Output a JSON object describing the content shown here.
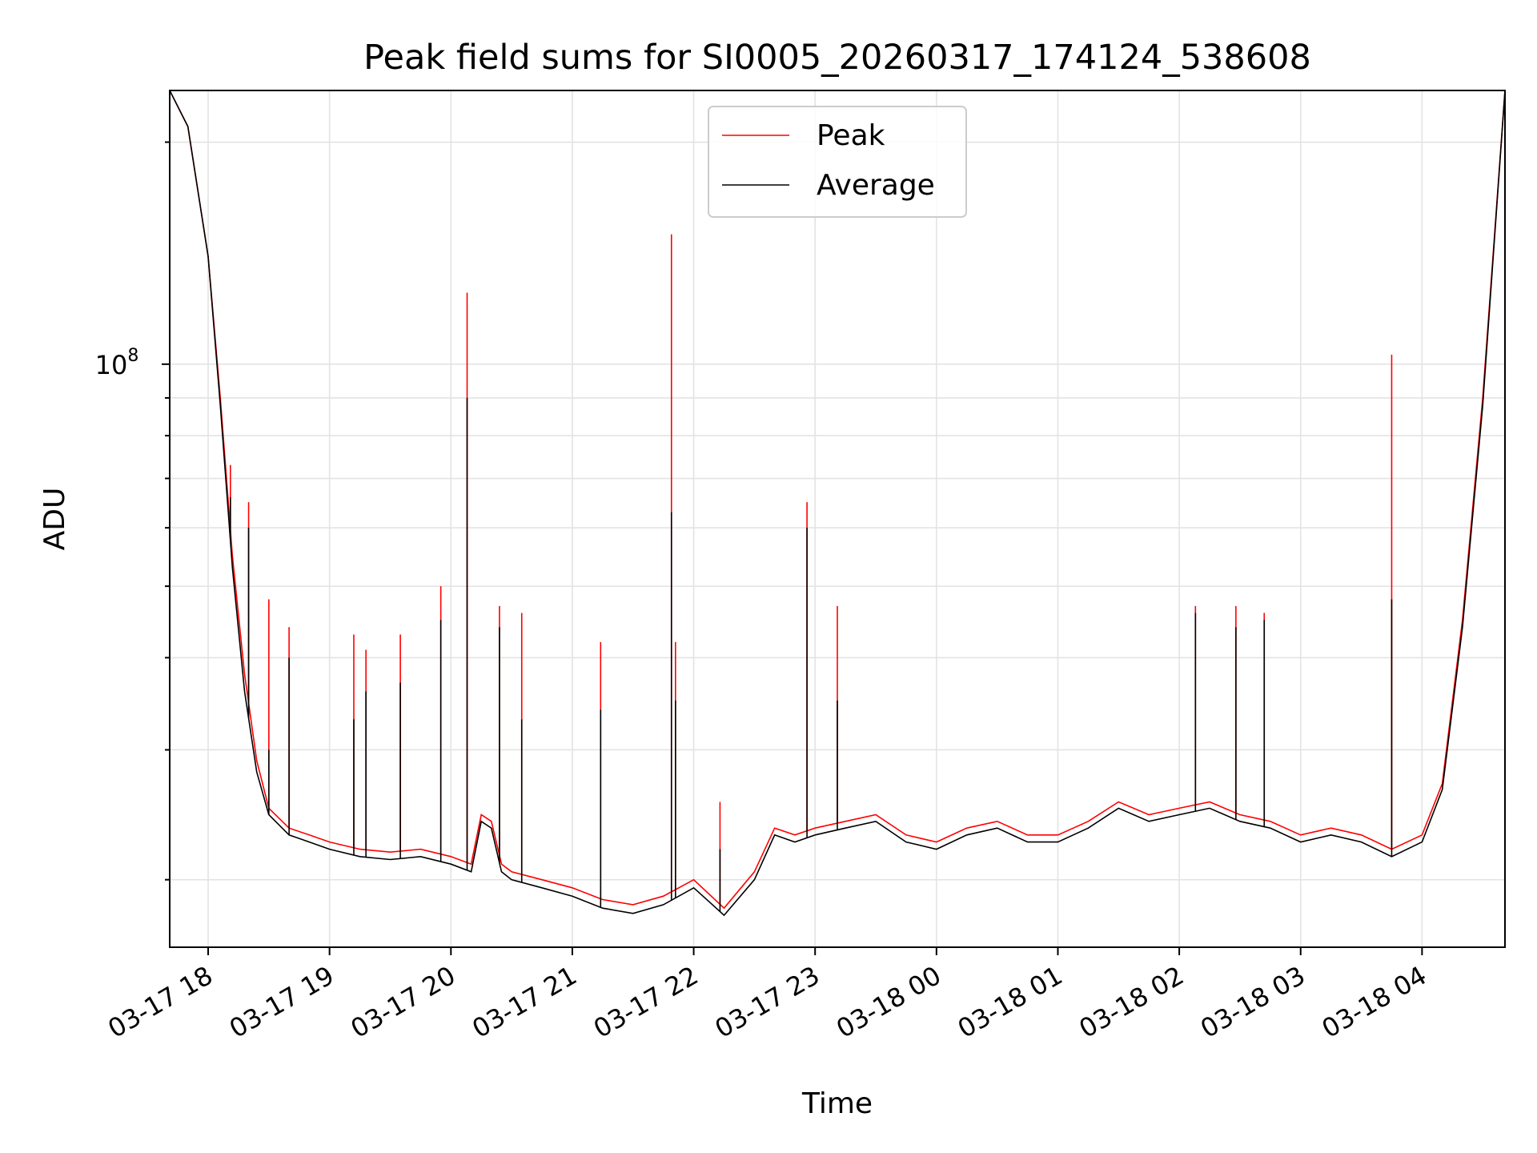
{
  "chart_data": {
    "type": "line",
    "title": "Peak field sums for SI0005_20260317_174124_538608",
    "xlabel": "Time",
    "ylabel": "ADU",
    "x_tick_labels": [
      "03-17 18",
      "03-17 19",
      "03-17 20",
      "03-17 21",
      "03-17 22",
      "03-17 23",
      "03-18 00",
      "03-18 01",
      "03-18 02",
      "03-18 03",
      "03-18 04"
    ],
    "y_tick_label": {
      "base": "10",
      "exponent": "8",
      "value": 100000000
    },
    "yscale": "log",
    "ylim": [
      16200000,
      235000000
    ],
    "xlim": [
      "2026-03-17 17:41",
      "2026-03-18 04:41"
    ],
    "grid": true,
    "legend_position": "top-center",
    "x": [
      "2026-03-17 17:41",
      "2026-03-17 17:50",
      "2026-03-17 18:00",
      "2026-03-17 18:06",
      "2026-03-17 18:12",
      "2026-03-17 18:18",
      "2026-03-17 18:24",
      "2026-03-17 18:30",
      "2026-03-17 18:40",
      "2026-03-17 18:50",
      "2026-03-17 19:00",
      "2026-03-17 19:15",
      "2026-03-17 19:30",
      "2026-03-17 19:45",
      "2026-03-17 20:00",
      "2026-03-17 20:10",
      "2026-03-17 20:15",
      "2026-03-17 20:20",
      "2026-03-17 20:25",
      "2026-03-17 20:30",
      "2026-03-17 20:45",
      "2026-03-17 21:00",
      "2026-03-17 21:15",
      "2026-03-17 21:30",
      "2026-03-17 21:45",
      "2026-03-17 22:00",
      "2026-03-17 22:15",
      "2026-03-17 22:30",
      "2026-03-17 22:40",
      "2026-03-17 22:50",
      "2026-03-17 23:00",
      "2026-03-17 23:15",
      "2026-03-17 23:30",
      "2026-03-17 23:45",
      "2026-03-18 00:00",
      "2026-03-18 00:15",
      "2026-03-18 00:30",
      "2026-03-18 00:45",
      "2026-03-18 01:00",
      "2026-03-18 01:15",
      "2026-03-18 01:30",
      "2026-03-18 01:45",
      "2026-03-18 02:00",
      "2026-03-18 02:15",
      "2026-03-18 02:30",
      "2026-03-18 02:45",
      "2026-03-18 03:00",
      "2026-03-18 03:15",
      "2026-03-18 03:30",
      "2026-03-18 03:45",
      "2026-03-18 04:00",
      "2026-03-18 04:10",
      "2026-03-18 04:20",
      "2026-03-18 04:30",
      "2026-03-18 04:41"
    ],
    "series": [
      {
        "name": "Peak",
        "color": "#ff0000",
        "values": [
          235000000,
          210000000,
          140000000,
          90000000,
          55000000,
          38000000,
          29000000,
          25000000,
          23500000,
          23000000,
          22500000,
          22000000,
          21800000,
          22000000,
          21500000,
          21000000,
          24500000,
          24000000,
          21000000,
          20500000,
          20000000,
          19500000,
          18800000,
          18500000,
          19000000,
          20000000,
          18300000,
          20500000,
          23500000,
          23000000,
          23500000,
          24000000,
          24500000,
          23000000,
          22500000,
          23500000,
          24000000,
          23000000,
          23000000,
          24000000,
          25500000,
          24500000,
          25000000,
          25500000,
          24500000,
          24000000,
          23000000,
          23500000,
          23000000,
          22000000,
          23000000,
          27000000,
          45000000,
          90000000,
          235000000
        ]
      },
      {
        "name": "Average",
        "color": "#000000",
        "values": [
          235000000,
          210000000,
          140000000,
          88000000,
          53000000,
          36000000,
          28000000,
          24500000,
          23000000,
          22500000,
          22000000,
          21500000,
          21300000,
          21500000,
          21000000,
          20500000,
          24000000,
          23500000,
          20500000,
          20000000,
          19500000,
          19000000,
          18300000,
          18000000,
          18500000,
          19500000,
          17900000,
          20000000,
          23000000,
          22500000,
          23000000,
          23500000,
          24000000,
          22500000,
          22000000,
          23000000,
          23500000,
          22500000,
          22500000,
          23500000,
          25000000,
          24000000,
          24500000,
          25000000,
          24000000,
          23500000,
          22500000,
          23000000,
          22500000,
          21500000,
          22500000,
          26500000,
          44000000,
          88000000,
          235000000
        ]
      }
    ],
    "spikes": [
      {
        "x": "2026-03-17 18:11",
        "peak": 73000000,
        "average": 66000000
      },
      {
        "x": "2026-03-17 18:20",
        "peak": 65000000,
        "average": 60000000
      },
      {
        "x": "2026-03-17 18:30",
        "peak": 48000000,
        "average": 30000000
      },
      {
        "x": "2026-03-17 18:40",
        "peak": 44000000,
        "average": 40000000
      },
      {
        "x": "2026-03-17 19:12",
        "peak": 43000000,
        "average": 33000000
      },
      {
        "x": "2026-03-17 19:18",
        "peak": 41000000,
        "average": 36000000
      },
      {
        "x": "2026-03-17 19:35",
        "peak": 43000000,
        "average": 37000000
      },
      {
        "x": "2026-03-17 19:55",
        "peak": 50000000,
        "average": 45000000
      },
      {
        "x": "2026-03-17 20:08",
        "peak": 125000000,
        "average": 90000000
      },
      {
        "x": "2026-03-17 20:24",
        "peak": 47000000,
        "average": 44000000
      },
      {
        "x": "2026-03-17 20:35",
        "peak": 46000000,
        "average": 33000000
      },
      {
        "x": "2026-03-17 21:14",
        "peak": 42000000,
        "average": 34000000
      },
      {
        "x": "2026-03-17 21:49",
        "peak": 150000000,
        "average": 63000000
      },
      {
        "x": "2026-03-17 21:51",
        "peak": 42000000,
        "average": 35000000
      },
      {
        "x": "2026-03-17 22:13",
        "peak": 25500000,
        "average": 22000000
      },
      {
        "x": "2026-03-17 22:56",
        "peak": 65000000,
        "average": 60000000
      },
      {
        "x": "2026-03-17 23:11",
        "peak": 47000000,
        "average": 35000000
      },
      {
        "x": "2026-03-18 02:08",
        "peak": 47000000,
        "average": 46000000
      },
      {
        "x": "2026-03-18 02:28",
        "peak": 47000000,
        "average": 44000000
      },
      {
        "x": "2026-03-18 02:42",
        "peak": 46000000,
        "average": 45000000
      },
      {
        "x": "2026-03-18 03:45",
        "peak": 103000000,
        "average": 48000000
      }
    ]
  }
}
